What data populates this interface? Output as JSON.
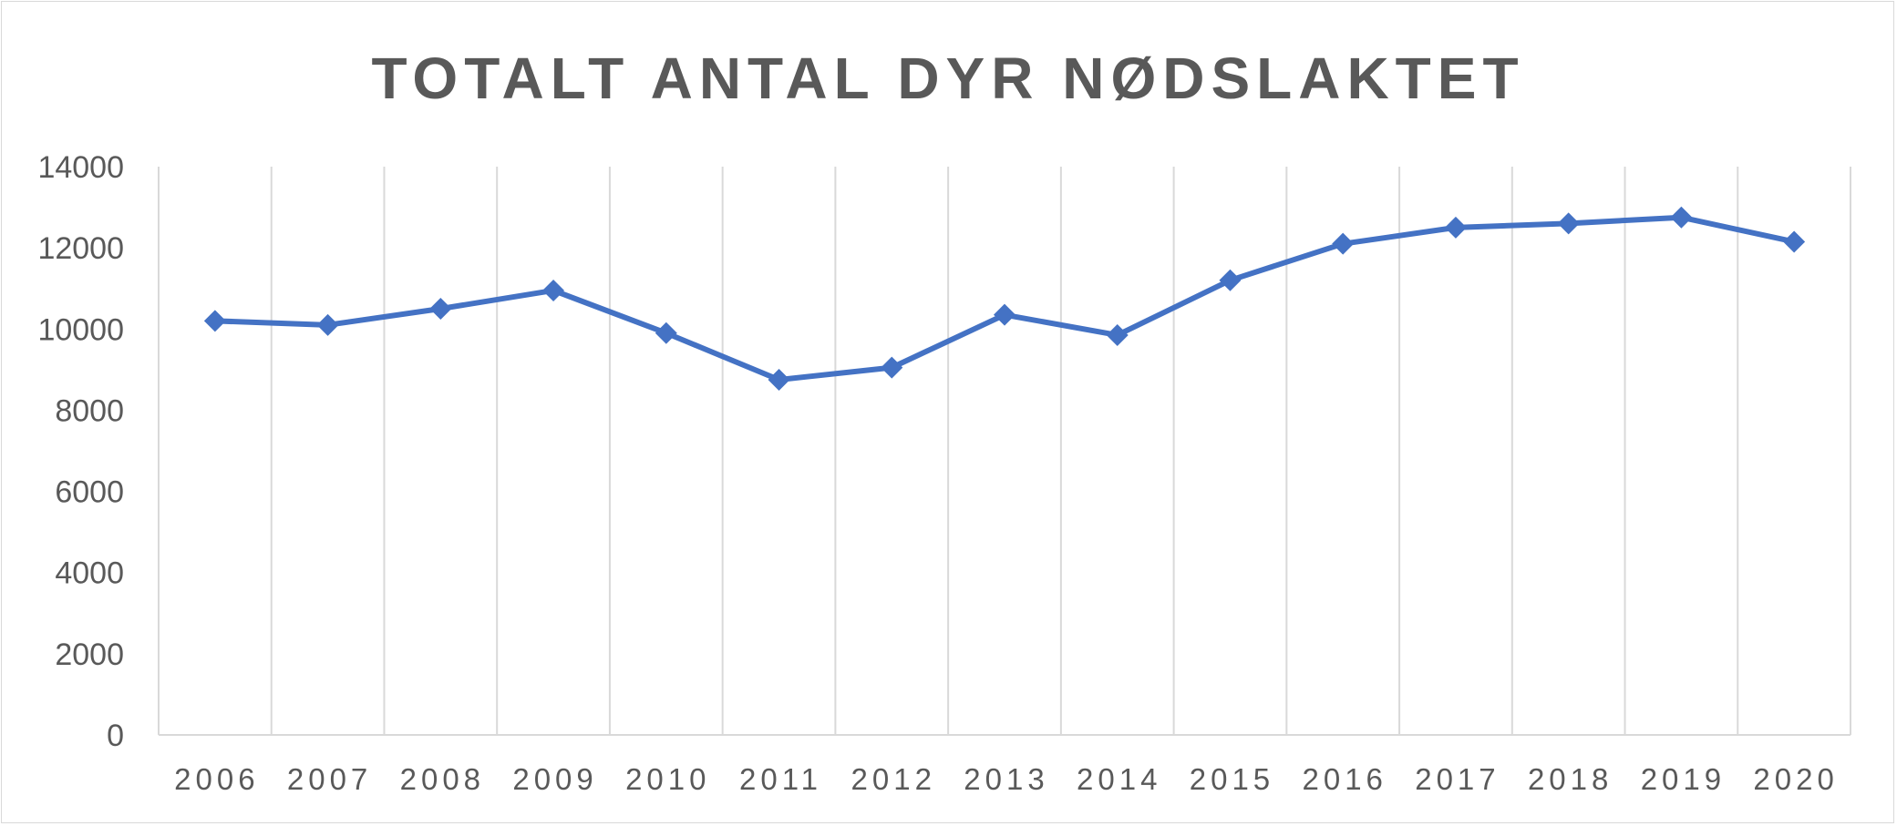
{
  "chart_data": {
    "type": "line",
    "title": "TOTALT ANTAL DYR NØDSLAKTET",
    "xlabel": "",
    "ylabel": "",
    "categories": [
      "2006",
      "2007",
      "2008",
      "2009",
      "2010",
      "2011",
      "2012",
      "2013",
      "2014",
      "2015",
      "2016",
      "2017",
      "2018",
      "2019",
      "2020"
    ],
    "series": [
      {
        "values": [
          10200,
          10100,
          10500,
          10950,
          9900,
          8750,
          9050,
          10350,
          9850,
          11200,
          12100,
          12500,
          12600,
          12750,
          12150
        ]
      }
    ],
    "ylim": [
      0,
      14000
    ],
    "yticks": [
      "0",
      "2000",
      "4000",
      "6000",
      "8000",
      "10000",
      "12000",
      "14000"
    ],
    "grid": "vertical",
    "legend": "none",
    "colors": {
      "line": "#4472C4",
      "grid": "#d9d9d9",
      "text": "#595959"
    }
  }
}
